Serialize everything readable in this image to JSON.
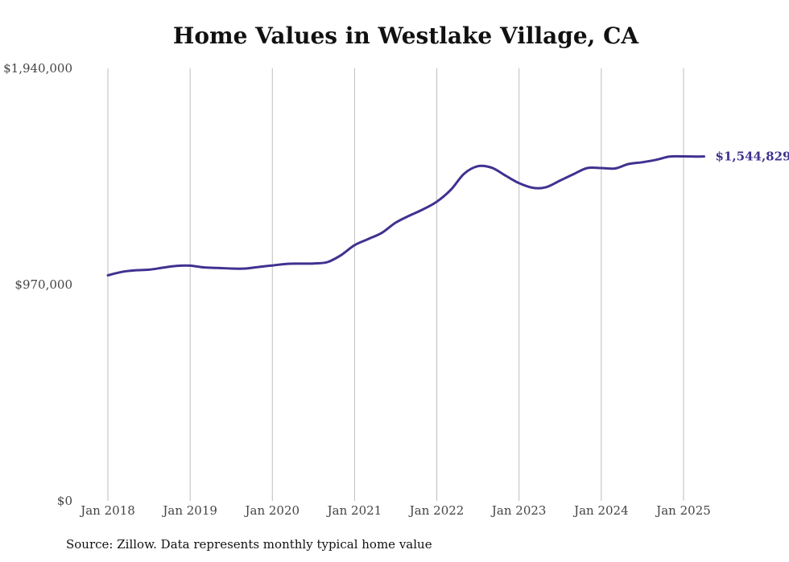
{
  "chart_data": {
    "type": "line",
    "title": "Home Values in Westlake Village, CA",
    "xlabel": "",
    "ylabel": "",
    "x_ticks": [
      {
        "label": "Jan 2018",
        "x": 2018.0
      },
      {
        "label": "Jan 2019",
        "x": 2019.0
      },
      {
        "label": "Jan 2020",
        "x": 2020.0
      },
      {
        "label": "Jan 2021",
        "x": 2021.0
      },
      {
        "label": "Jan 2022",
        "x": 2022.0
      },
      {
        "label": "Jan 2023",
        "x": 2023.0
      },
      {
        "label": "Jan 2024",
        "x": 2024.0
      },
      {
        "label": "Jan 2025",
        "x": 2025.0
      }
    ],
    "y_ticks": [
      {
        "label": "$0",
        "value": 0
      },
      {
        "label": "$970,000",
        "value": 970000
      },
      {
        "label": "$1,940,000",
        "value": 1940000
      }
    ],
    "ylim": [
      0,
      1940000
    ],
    "xlim": [
      2018.0,
      2025.25
    ],
    "grid": "vertical",
    "line_color": "#3f3290",
    "end_label": "$1,544,829",
    "series": [
      {
        "values": [
          [
            2018.0,
            1012000
          ],
          [
            2018.17,
            1027000
          ],
          [
            2018.33,
            1034000
          ],
          [
            2018.5,
            1037000
          ],
          [
            2018.67,
            1046000
          ],
          [
            2018.83,
            1054000
          ],
          [
            2019.0,
            1055000
          ],
          [
            2019.17,
            1047000
          ],
          [
            2019.33,
            1045000
          ],
          [
            2019.5,
            1042000
          ],
          [
            2019.67,
            1042000
          ],
          [
            2019.83,
            1049000
          ],
          [
            2020.0,
            1056000
          ],
          [
            2020.17,
            1063000
          ],
          [
            2020.33,
            1064000
          ],
          [
            2020.5,
            1065000
          ],
          [
            2020.67,
            1071000
          ],
          [
            2020.83,
            1101000
          ],
          [
            2021.0,
            1147000
          ],
          [
            2021.17,
            1175000
          ],
          [
            2021.33,
            1202000
          ],
          [
            2021.5,
            1248000
          ],
          [
            2021.67,
            1280000
          ],
          [
            2021.83,
            1307000
          ],
          [
            2022.0,
            1342000
          ],
          [
            2022.17,
            1395000
          ],
          [
            2022.33,
            1467000
          ],
          [
            2022.5,
            1501000
          ],
          [
            2022.67,
            1494000
          ],
          [
            2022.83,
            1460000
          ],
          [
            2023.0,
            1425000
          ],
          [
            2023.17,
            1404000
          ],
          [
            2023.33,
            1407000
          ],
          [
            2023.5,
            1437000
          ],
          [
            2023.67,
            1467000
          ],
          [
            2023.83,
            1493000
          ],
          [
            2024.0,
            1493000
          ],
          [
            2024.17,
            1491000
          ],
          [
            2024.33,
            1511000
          ],
          [
            2024.5,
            1519000
          ],
          [
            2024.67,
            1530000
          ],
          [
            2024.83,
            1544000
          ],
          [
            2025.0,
            1545000
          ],
          [
            2025.17,
            1544000
          ],
          [
            2025.25,
            1544829
          ]
        ]
      }
    ]
  },
  "source_text": "Source: Zillow. Data represents monthly typical home value"
}
